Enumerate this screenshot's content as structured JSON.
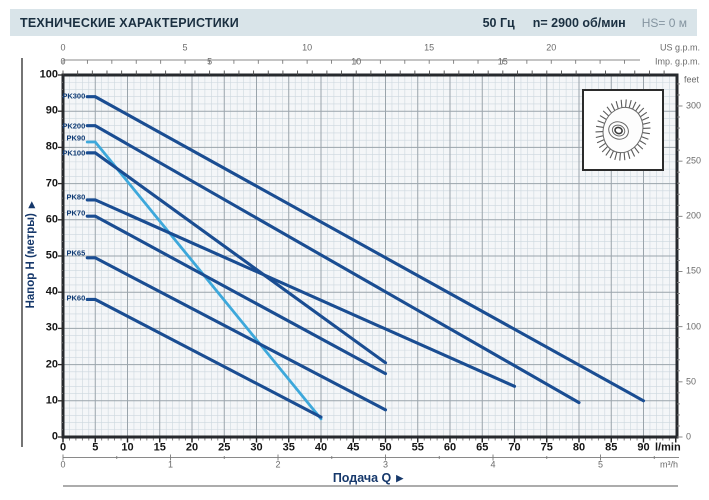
{
  "header": {
    "title": "ТЕХНИЧЕСКИЕ ХАРАКТЕРИСТИКИ",
    "frequency": "50 Гц",
    "speed": "n= 2900 об/мин",
    "suction": "HS= 0 м"
  },
  "chart_data": {
    "type": "line",
    "title": "Pump performance curves Q-H",
    "xlabel": "Подача Q",
    "xlabel_arrow": "▶",
    "ylabel": "Напор H (метры)",
    "ylabel_arrow": "▶",
    "x_axes": {
      "lmin": {
        "label": "l/min",
        "ticks": [
          0,
          5,
          10,
          15,
          20,
          25,
          30,
          35,
          40,
          45,
          50,
          55,
          60,
          65,
          70,
          75,
          80,
          85,
          90
        ],
        "minor_step": 1,
        "max": 95
      },
      "m3h": {
        "label": "m³/h",
        "ticks": [
          0,
          1,
          2,
          3,
          4,
          5
        ],
        "minor_step": 0.5,
        "lmin_per_unit": 16.667,
        "max": 5.5
      },
      "us_gpm": {
        "label": "US g.p.m.",
        "ticks": [
          0,
          5,
          10,
          15,
          20
        ],
        "minor_step": 1,
        "lmin_per_unit": 3.785,
        "max": 23
      },
      "imp_gpm": {
        "label": "Imp. g.p.m.",
        "ticks": [
          0,
          5,
          10,
          15
        ],
        "minor_step": 0.5,
        "lmin_per_unit": 4.546,
        "max": 20.5
      }
    },
    "y_axes": {
      "meters": {
        "ticks": [
          0,
          10,
          20,
          30,
          40,
          50,
          60,
          70,
          80,
          90,
          100
        ],
        "minor_step": 2,
        "max": 100
      },
      "feet": {
        "label": "feet",
        "ticks": [
          0,
          50,
          100,
          150,
          200,
          250,
          300
        ],
        "minor_step": 10,
        "meters_per_foot": 0.3048,
        "max": 320
      }
    },
    "series": [
      {
        "name": "PK300",
        "color": "#1a4d92",
        "label_h": 94.2,
        "points": [
          [
            5,
            94
          ],
          [
            90,
            10
          ]
        ]
      },
      {
        "name": "PK200",
        "color": "#1a4d92",
        "label_h": 86.0,
        "points": [
          [
            5,
            86
          ],
          [
            80,
            9.5
          ]
        ]
      },
      {
        "name": "PK90",
        "color": "#3da8db",
        "label_h": 82.6,
        "points": [
          [
            5,
            81.5
          ],
          [
            40,
            5
          ]
        ]
      },
      {
        "name": "PK100",
        "color": "#1a4d92",
        "label_h": 78.5,
        "points": [
          [
            5,
            78.5
          ],
          [
            50,
            20.5
          ]
        ]
      },
      {
        "name": "PK80",
        "color": "#1a4d92",
        "label_h": 66.3,
        "points": [
          [
            5,
            65.5
          ],
          [
            70,
            14
          ]
        ]
      },
      {
        "name": "PK70",
        "color": "#1a4d92",
        "label_h": 61.8,
        "points": [
          [
            5,
            61
          ],
          [
            50,
            17.5
          ]
        ]
      },
      {
        "name": "PK65",
        "color": "#1a4d92",
        "label_h": 50.7,
        "points": [
          [
            5,
            49.5
          ],
          [
            50,
            7.5
          ]
        ]
      },
      {
        "name": "PK60",
        "color": "#1a4d92",
        "label_h": 38.4,
        "points": [
          [
            5,
            38
          ],
          [
            40,
            5.5
          ]
        ]
      }
    ],
    "colors": {
      "curve_dark": "#1a4d92",
      "curve_light": "#3da8db",
      "grid_minor": "#ccd7de",
      "grid_major": "#9aa4ab",
      "plot_bg": "#f4f6f8",
      "border": "#26292d",
      "axis_gray": "#8a8a8a",
      "label_navy": "#0e3a74"
    }
  }
}
